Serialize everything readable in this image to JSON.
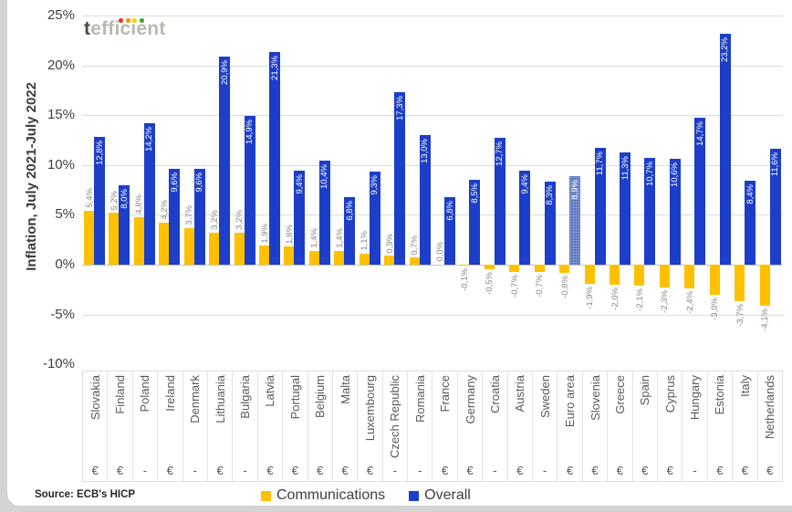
{
  "page": {
    "logo": {
      "prefix": "t",
      "rest": "efficient"
    },
    "source": "Source: ECB's HICP"
  },
  "colors": {
    "overall_blue": "#1c3ec8",
    "communications_yellow": "#ffc000",
    "euro_area_blue": "#5c77be",
    "gridline": "#dcdcdc",
    "logo_dots": [
      "#e03c31",
      "#f59b00",
      "#ffd100",
      "#3ea636"
    ]
  },
  "chart_data": {
    "type": "bar",
    "title": "",
    "ylabel": "Inflation, July 2021-July 2022",
    "xlabel": "",
    "ylim": [
      -10,
      25
    ],
    "grid": "horizontal",
    "legend_position": "bottom",
    "yticks": [
      {
        "label": "25%",
        "value": 25
      },
      {
        "label": "20%",
        "value": 20
      },
      {
        "label": "15%",
        "value": 15
      },
      {
        "label": "10%",
        "value": 10
      },
      {
        "label": "5%",
        "value": 5
      },
      {
        "label": "0%",
        "value": 0
      },
      {
        "label": "-5%",
        "value": -5
      },
      {
        "label": "-10%",
        "value": -10
      }
    ],
    "categories": [
      "Slovakia",
      "Finland",
      "Poland",
      "Ireland",
      "Denmark",
      "Lithuania",
      "Bulgaria",
      "Latvia",
      "Portugal",
      "Belgium",
      "Malta",
      "Luxembourg",
      "Czech Republic",
      "Romania",
      "France",
      "Germany",
      "Croatia",
      "Austria",
      "Sweden",
      "Euro area",
      "Slovenia",
      "Greece",
      "Spain",
      "Cyprus",
      "Hungary",
      "Estonia",
      "Italy",
      "Netherlands"
    ],
    "currency_row": [
      "€",
      "€",
      "-",
      "€",
      "-",
      "€",
      "-",
      "€",
      "€",
      "€",
      "€",
      "€",
      "-",
      "-",
      "€",
      "€",
      "-",
      "€",
      "-",
      "€",
      "€",
      "€",
      "€",
      "€",
      "-",
      "€",
      "€",
      "€"
    ],
    "series": [
      {
        "name": "Communications",
        "color": "#ffc000",
        "values": [
          5.4,
          5.2,
          4.8,
          4.2,
          3.7,
          3.2,
          3.2,
          1.9,
          1.8,
          1.4,
          1.4,
          1.1,
          0.9,
          0.7,
          0.0,
          -0.1,
          -0.5,
          -0.7,
          -0.7,
          -0.8,
          -1.9,
          -2.0,
          -2.1,
          -2.3,
          -2.4,
          -3.0,
          -3.7,
          -4.1
        ]
      },
      {
        "name": "Overall",
        "color": "#1c3ec8",
        "values": [
          12.8,
          8.0,
          14.2,
          9.6,
          9.6,
          20.9,
          14.9,
          21.3,
          9.4,
          10.4,
          6.8,
          9.3,
          17.3,
          13.0,
          6.8,
          8.5,
          12.7,
          9.4,
          8.3,
          8.9,
          11.7,
          11.3,
          10.7,
          10.6,
          14.7,
          23.2,
          8.4,
          11.6
        ]
      }
    ],
    "highlight_category": "Euro area",
    "highlight_color": "#5c77be",
    "decimal_separator": ","
  }
}
